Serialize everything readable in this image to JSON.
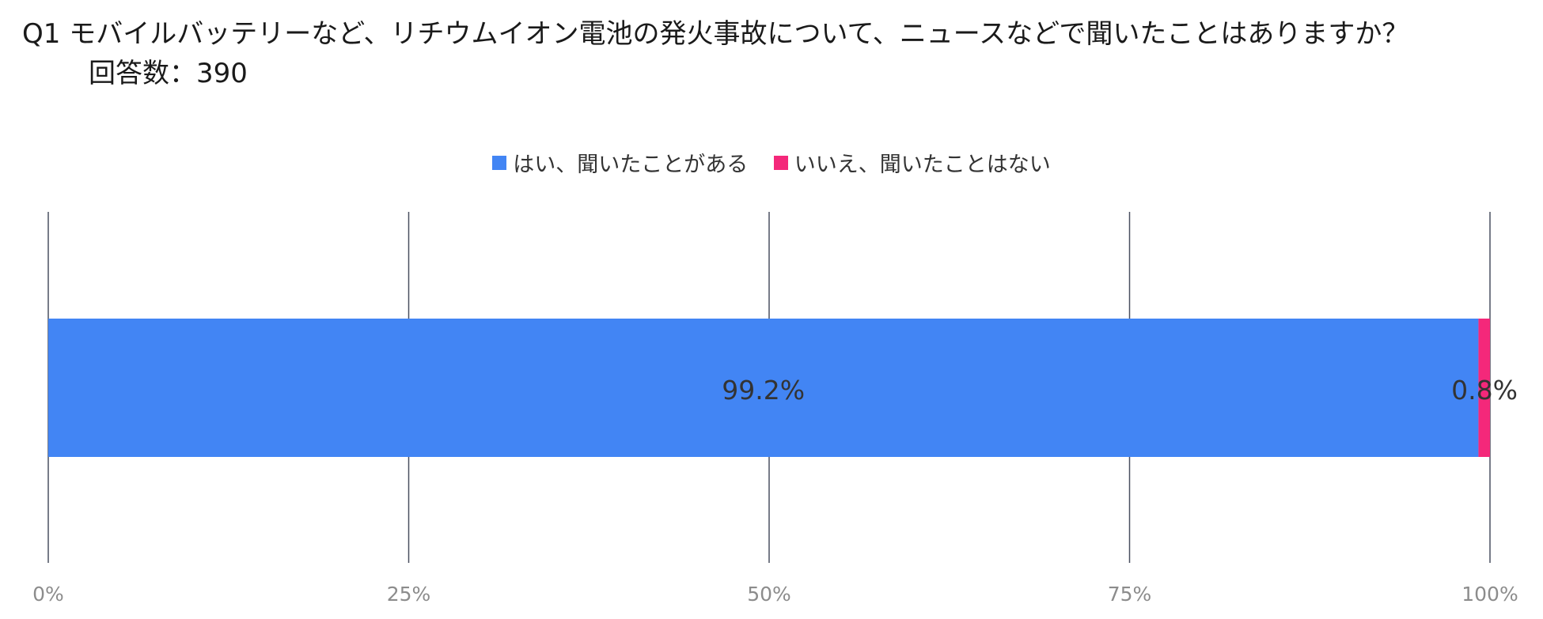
{
  "title": {
    "line1": "Q1 モバイルバッテリーなど、リチウムイオン電池の発火事故について、ニュースなどで聞いたことはありますか？",
    "line2": "回答数：390"
  },
  "chart_data": {
    "type": "bar",
    "orientation": "horizontal",
    "stacked": true,
    "categories": [
      ""
    ],
    "series": [
      {
        "name": "はい、聞いたことがある",
        "values": [
          99.2
        ],
        "label": "99.2%",
        "color": "#4285f4"
      },
      {
        "name": "いいえ、聞いたことはない",
        "values": [
          0.8
        ],
        "label": "0.8%",
        "color": "#f4287a"
      }
    ],
    "xlim": [
      0,
      100
    ],
    "xticks": [
      "0%",
      "25%",
      "50%",
      "75%",
      "100%"
    ],
    "grid": true,
    "legend": "top-center"
  }
}
